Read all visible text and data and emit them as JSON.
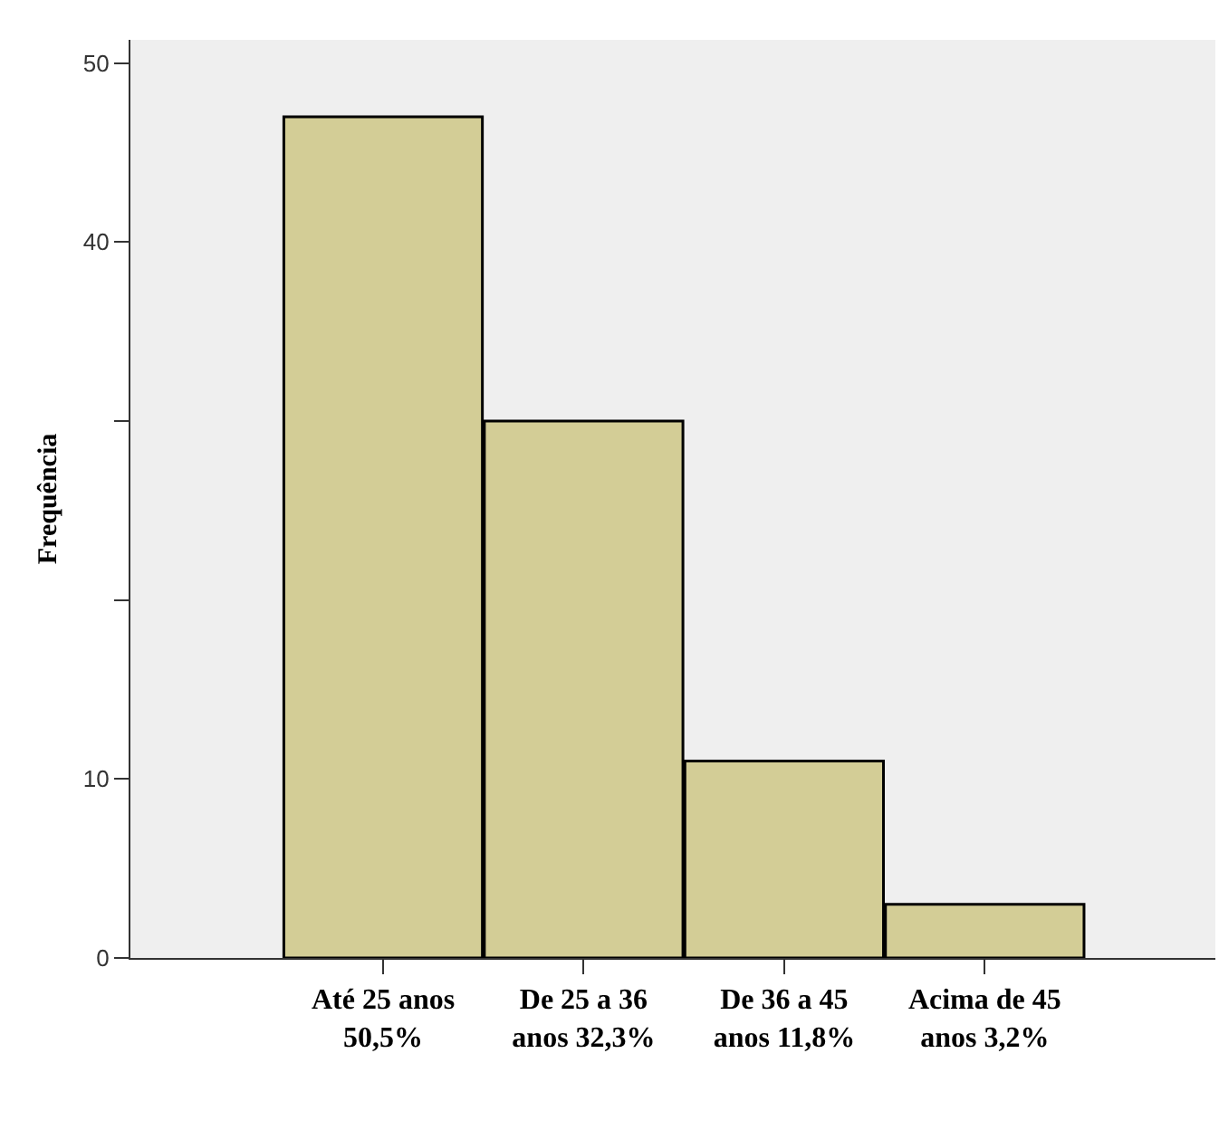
{
  "chart_data": {
    "type": "bar",
    "ylabel": "Frequência",
    "categories": [
      "Até 25 anos 50,5%",
      "De 25 a 36 anos 32,3%",
      "De 36 a 45 anos 11,8%",
      "Acima de 45 anos 3,2%"
    ],
    "values": [
      47,
      30,
      11,
      3
    ],
    "color": "#d3cd96",
    "ylim": [
      0,
      51.3
    ],
    "yticks": [
      0,
      10,
      {
        "value": 20,
        "label": null
      },
      {
        "value": 30,
        "label": null
      },
      40,
      50
    ],
    "grid": false,
    "legend": false
  }
}
